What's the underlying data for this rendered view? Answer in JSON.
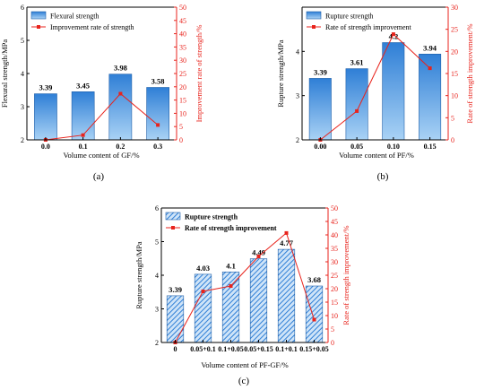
{
  "chart_data": [
    {
      "id": "a",
      "type": "bar+line",
      "caption": "(a)",
      "categories": [
        "0.0",
        "0.1",
        "0.2",
        "0.3"
      ],
      "bars": {
        "name": "Flexural strength",
        "values": [
          3.39,
          3.45,
          3.98,
          3.58
        ],
        "labels": [
          "3.39",
          "3.45",
          "3.98",
          "3.58"
        ]
      },
      "line": {
        "name": "Improvement rate of strength",
        "values": [
          0,
          1.8,
          17.4,
          5.6
        ]
      },
      "xlabel": "Volume content of  GF/%",
      "ylabel": "Flexural strength/MPa",
      "ylabel_right": "Improvement rate of strength/%",
      "ylim": [
        2,
        6
      ],
      "yticks": [
        "2",
        "3",
        "4",
        "5",
        "6"
      ],
      "ylim_right": [
        0,
        50
      ],
      "yticks_right": [
        "0",
        "5",
        "10",
        "15",
        "20",
        "25",
        "30",
        "35",
        "40",
        "45",
        "50"
      ],
      "bar_style": "solid",
      "legend": "top-left",
      "colors": {
        "bar": "#3b8fdc",
        "line": "#e8231c"
      }
    },
    {
      "id": "b",
      "type": "bar+line",
      "caption": "(b)",
      "categories": [
        "0.00",
        "0.05",
        "0.10",
        "0.15"
      ],
      "bars": {
        "name": "Rupture strength",
        "values": [
          3.39,
          3.61,
          4.2,
          3.94
        ],
        "labels": [
          "3.39",
          "3.61",
          "4.2",
          "3.94"
        ]
      },
      "line": {
        "name": "Rate of strength improvement",
        "values": [
          0,
          6.5,
          23.9,
          16.2
        ]
      },
      "xlabel": "Volume content of PF/%",
      "ylabel": "Rupture strength/MPa",
      "ylabel_right": "Rate of strength improvement/%",
      "ylim": [
        2,
        5
      ],
      "yticks": [
        "2",
        "3",
        "4"
      ],
      "ylim_right": [
        0,
        30
      ],
      "yticks_right": [
        "0",
        "5",
        "10",
        "15",
        "20",
        "25",
        "30"
      ],
      "bar_style": "solid",
      "legend": "top-left",
      "colors": {
        "bar": "#3b8fdc",
        "line": "#e8231c"
      }
    },
    {
      "id": "c",
      "type": "bar+line",
      "caption": "(c)",
      "categories": [
        "0",
        "0.05+0.1",
        "0.1+0.05",
        "0.05+0.15",
        "0.1+0.1",
        "0.15+0.05"
      ],
      "bars": {
        "name": "Rupture strength",
        "values": [
          3.39,
          4.03,
          4.1,
          4.49,
          4.77,
          3.68
        ],
        "labels": [
          "3.39",
          "4.03",
          "4.1",
          "4.49",
          "4.77",
          "3.68"
        ]
      },
      "line": {
        "name": "Rate of strength improvement",
        "values": [
          0,
          19,
          21,
          32,
          40.7,
          8.5
        ]
      },
      "xlabel": "Volume content of  PF-GF/%",
      "ylabel": "Rupture strength/MPa",
      "ylabel_right": "Rate of strength improvement/%",
      "ylim": [
        2,
        6
      ],
      "yticks": [
        "2",
        "3",
        "4",
        "5",
        "6"
      ],
      "ylim_right": [
        0,
        50
      ],
      "yticks_right": [
        "0",
        "5",
        "10",
        "15",
        "20",
        "25",
        "30",
        "35",
        "40",
        "45",
        "50"
      ],
      "bar_style": "hatched",
      "legend": "top-left",
      "colors": {
        "bar": "#3b8fdc",
        "line": "#e8231c"
      }
    }
  ]
}
